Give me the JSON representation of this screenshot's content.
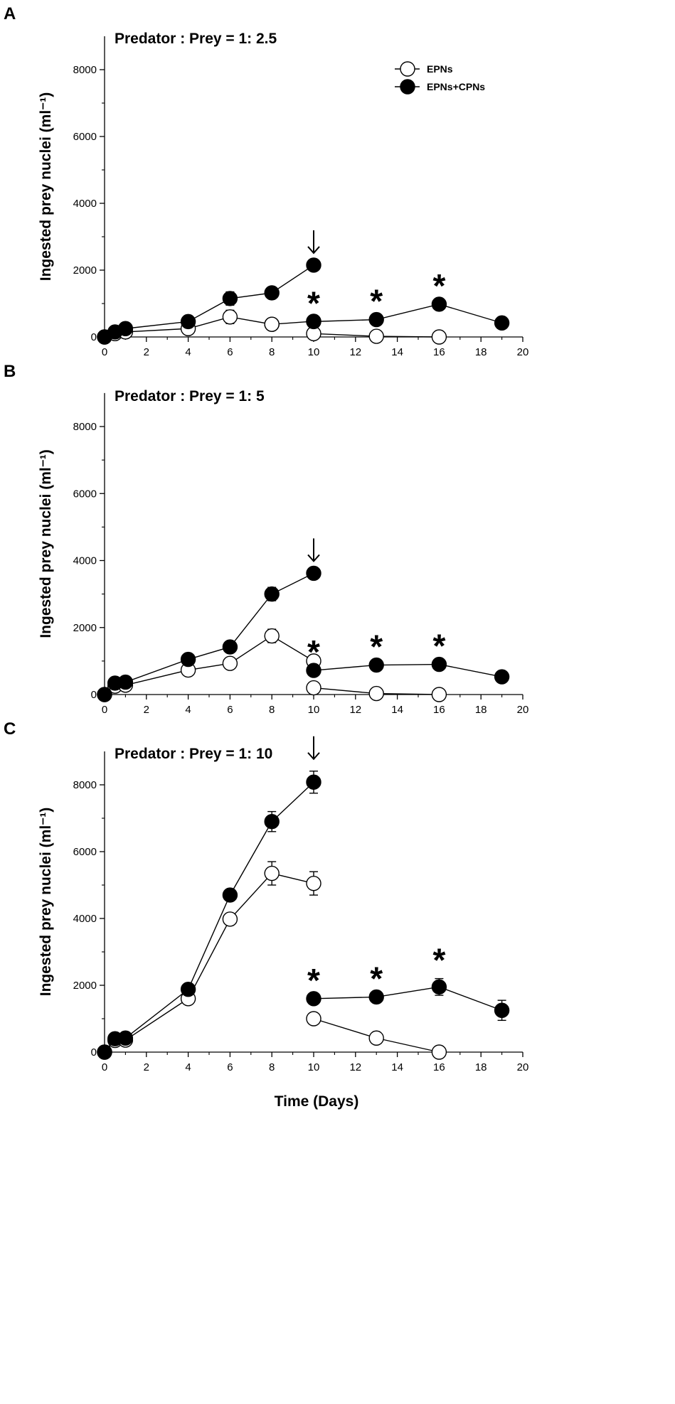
{
  "chart_data": [
    {
      "type": "line",
      "panel": "A",
      "title": "Predator : Prey = 1: 2.5",
      "ylabel": "Ingested prey nuclei (ml⁻¹)",
      "xlabel": "",
      "xlim": [
        0,
        20
      ],
      "ylim": [
        0,
        9000
      ],
      "xticks": [
        0,
        2,
        4,
        6,
        8,
        10,
        12,
        14,
        16,
        18,
        20
      ],
      "yticks": [
        0,
        2000,
        4000,
        6000,
        8000
      ],
      "legend": [
        "EPNs",
        "EPNs+CPNs"
      ],
      "series": [
        {
          "name": "EPNs",
          "marker": "open",
          "segments": [
            [
              {
                "x": 0,
                "y": 0
              },
              {
                "x": 0.5,
                "y": 100
              },
              {
                "x": 1,
                "y": 150
              },
              {
                "x": 4,
                "y": 250
              },
              {
                "x": 6,
                "y": 600,
                "err": 200
              },
              {
                "x": 8,
                "y": 380
              }
            ],
            [
              {
                "x": 8,
                "y": 380
              },
              {
                "x": 10,
                "y": 470
              }
            ],
            [
              {
                "x": 10,
                "y": 100
              },
              {
                "x": 13,
                "y": 20
              },
              {
                "x": 16,
                "y": 0
              }
            ]
          ]
        },
        {
          "name": "EPNs+CPNs",
          "marker": "filled",
          "segments": [
            [
              {
                "x": 0,
                "y": 0
              },
              {
                "x": 0.5,
                "y": 150
              },
              {
                "x": 1,
                "y": 250
              },
              {
                "x": 4,
                "y": 460
              },
              {
                "x": 6,
                "y": 1150,
                "err": 200
              },
              {
                "x": 8,
                "y": 1320
              },
              {
                "x": 10,
                "y": 2150
              }
            ],
            [
              {
                "x": 10,
                "y": 460
              },
              {
                "x": 13,
                "y": 520
              },
              {
                "x": 16,
                "y": 980
              },
              {
                "x": 19,
                "y": 420
              }
            ]
          ]
        }
      ],
      "annotations": {
        "arrow_x": 10,
        "asterisk_x": [
          10,
          13,
          16
        ],
        "asterisk": "*"
      }
    },
    {
      "type": "line",
      "panel": "B",
      "title": "Predator : Prey = 1: 5",
      "ylabel": "Ingested prey nuclei (ml⁻¹)",
      "xlabel": "",
      "xlim": [
        0,
        20
      ],
      "ylim": [
        0,
        9000
      ],
      "xticks": [
        0,
        2,
        4,
        6,
        8,
        10,
        12,
        14,
        16,
        18,
        20
      ],
      "yticks": [
        0,
        2000,
        4000,
        6000,
        8000
      ],
      "series": [
        {
          "name": "EPNs",
          "marker": "open",
          "segments": [
            [
              {
                "x": 0,
                "y": 0
              },
              {
                "x": 0.5,
                "y": 250
              },
              {
                "x": 1,
                "y": 280
              },
              {
                "x": 4,
                "y": 730
              },
              {
                "x": 6,
                "y": 930
              },
              {
                "x": 8,
                "y": 1750,
                "err": 200
              },
              {
                "x": 10,
                "y": 1000
              }
            ],
            [
              {
                "x": 10,
                "y": 200
              },
              {
                "x": 13,
                "y": 30
              },
              {
                "x": 16,
                "y": 0
              }
            ]
          ]
        },
        {
          "name": "EPNs+CPNs",
          "marker": "filled",
          "segments": [
            [
              {
                "x": 0,
                "y": 0
              },
              {
                "x": 0.5,
                "y": 340
              },
              {
                "x": 1,
                "y": 370
              },
              {
                "x": 4,
                "y": 1050
              },
              {
                "x": 6,
                "y": 1420
              },
              {
                "x": 8,
                "y": 3000,
                "err": 200
              },
              {
                "x": 10,
                "y": 3620
              }
            ],
            [
              {
                "x": 10,
                "y": 720
              },
              {
                "x": 13,
                "y": 880
              },
              {
                "x": 16,
                "y": 900
              },
              {
                "x": 19,
                "y": 530
              }
            ]
          ]
        }
      ],
      "annotations": {
        "arrow_x": 10,
        "asterisk_x": [
          10,
          13,
          16
        ],
        "asterisk": "*"
      }
    },
    {
      "type": "line",
      "panel": "C",
      "title": "Predator : Prey = 1: 10",
      "ylabel": "Ingested prey nuclei (ml⁻¹)",
      "xlabel": "Time (Days)",
      "xlim": [
        0,
        20
      ],
      "ylim": [
        0,
        9000
      ],
      "xticks": [
        0,
        2,
        4,
        6,
        8,
        10,
        12,
        14,
        16,
        18,
        20
      ],
      "yticks": [
        0,
        2000,
        4000,
        6000,
        8000
      ],
      "series": [
        {
          "name": "EPNs",
          "marker": "open",
          "segments": [
            [
              {
                "x": 0,
                "y": 0
              },
              {
                "x": 0.5,
                "y": 350
              },
              {
                "x": 1,
                "y": 360
              },
              {
                "x": 4,
                "y": 1600
              },
              {
                "x": 6,
                "y": 3980
              },
              {
                "x": 8,
                "y": 5350,
                "err": 350
              },
              {
                "x": 10,
                "y": 5050,
                "err": 350
              }
            ],
            [
              {
                "x": 10,
                "y": 1000
              },
              {
                "x": 13,
                "y": 420
              },
              {
                "x": 16,
                "y": 0
              }
            ]
          ]
        },
        {
          "name": "EPNs+CPNs",
          "marker": "filled",
          "segments": [
            [
              {
                "x": 0,
                "y": 0
              },
              {
                "x": 0.5,
                "y": 400
              },
              {
                "x": 1,
                "y": 420
              },
              {
                "x": 4,
                "y": 1880
              },
              {
                "x": 6,
                "y": 4700
              },
              {
                "x": 8,
                "y": 6900,
                "err": 300
              },
              {
                "x": 10,
                "y": 8080,
                "err": 330
              }
            ],
            [
              {
                "x": 10,
                "y": 1600
              },
              {
                "x": 13,
                "y": 1650
              },
              {
                "x": 16,
                "y": 1950,
                "err": 250
              },
              {
                "x": 19,
                "y": 1250,
                "err": 300
              }
            ]
          ]
        }
      ],
      "annotations": {
        "arrow_x": 10,
        "asterisk_x": [
          10,
          13,
          16
        ],
        "asterisk": "*"
      }
    }
  ]
}
